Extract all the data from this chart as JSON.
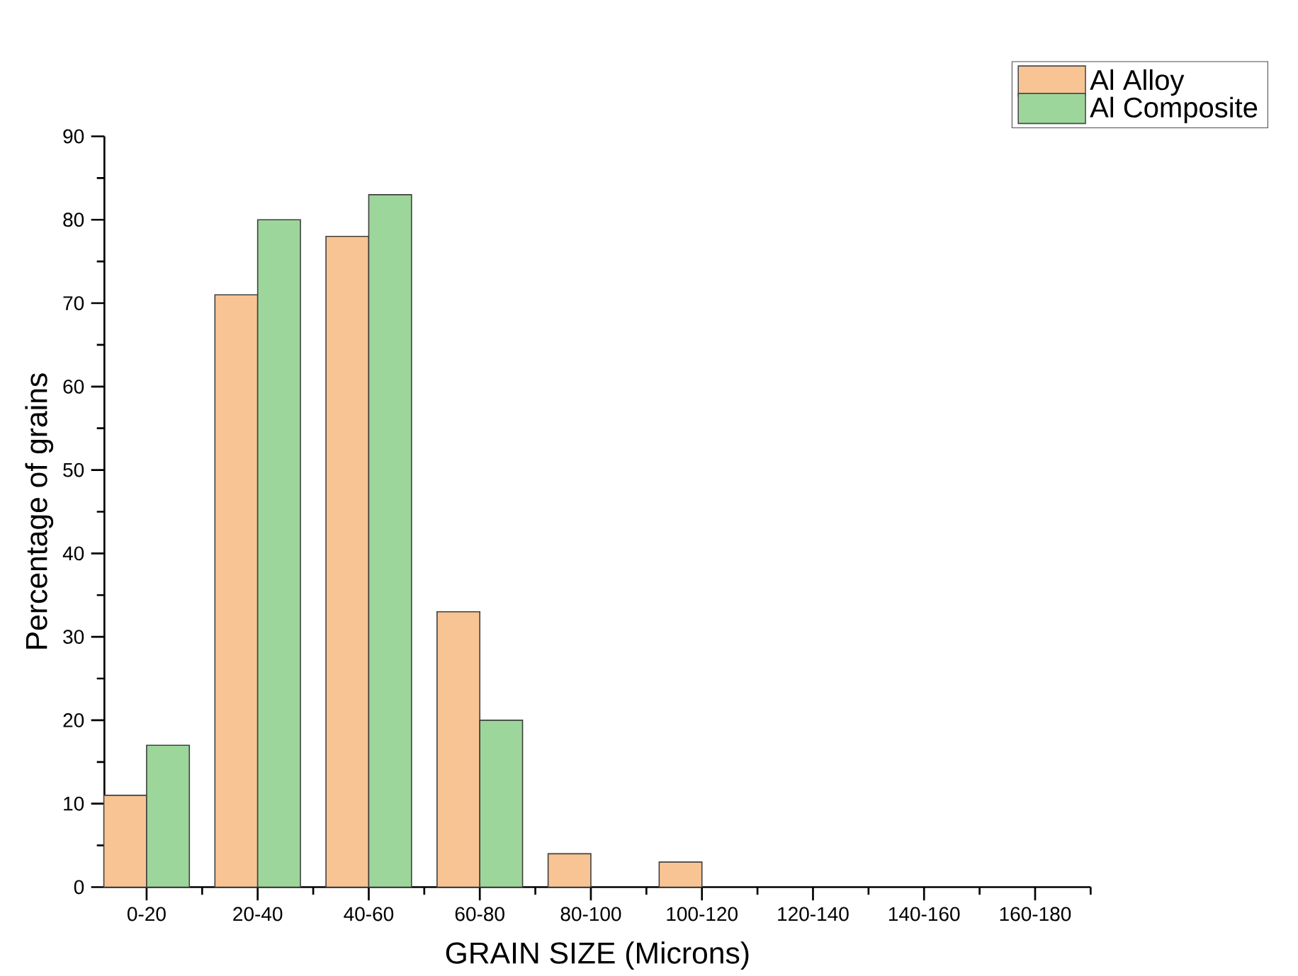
{
  "chart_data": {
    "type": "bar",
    "xlabel": "GRAIN SIZE (Microns)",
    "ylabel": "Percentage of grains",
    "categories": [
      "0-20",
      "20-40",
      "40-60",
      "60-80",
      "80-100",
      "100-120",
      "120-140",
      "140-160",
      "160-180"
    ],
    "series": [
      {
        "name": "Al Alloy",
        "color": "#f9c493",
        "values": [
          11,
          71,
          78,
          33,
          4,
          3,
          null,
          null,
          null
        ]
      },
      {
        "name": "Al Composite",
        "color": "#9dd69a",
        "values": [
          17,
          80,
          83,
          20,
          null,
          null,
          null,
          null,
          null
        ]
      }
    ],
    "ylim": [
      0,
      90
    ],
    "yticks": [
      0,
      10,
      20,
      30,
      40,
      50,
      60,
      70,
      80,
      90
    ],
    "grid": false,
    "legend": "top right"
  }
}
